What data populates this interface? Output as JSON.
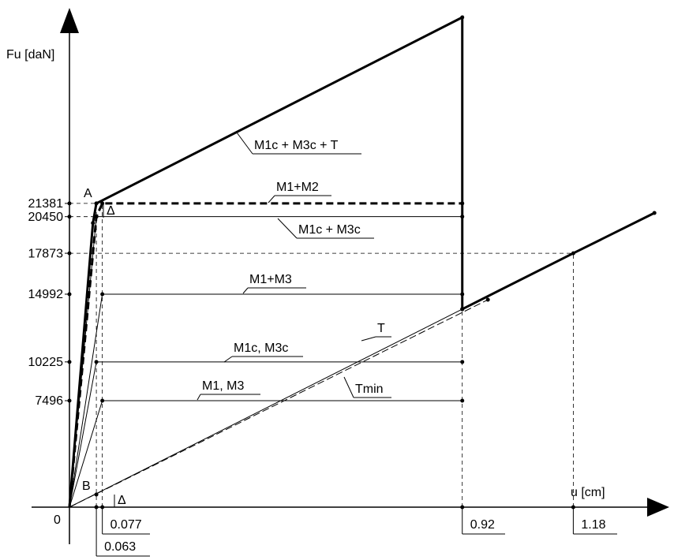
{
  "chart_data": {
    "type": "line",
    "y_label": "Fu [daN]",
    "x_label": "u [cm]",
    "origin_label": "0",
    "annotations": [
      "A",
      "B",
      "Δ",
      "Δ"
    ],
    "xlim": [
      0,
      1.39
    ],
    "ylim": [
      0,
      34590
    ],
    "xticks": [
      0.063,
      0.077,
      0.92,
      1.18
    ],
    "yticks": [
      7496,
      10225,
      14992,
      17873,
      20450,
      21381
    ],
    "series": [
      {
        "name": "M1c + M3c + T",
        "color": "#000000",
        "width": 3,
        "dashed": false,
        "x": [
          0,
          0.055,
          0.063,
          0.92,
          0.92,
          1.18,
          1.37
        ],
        "values": [
          0,
          20000,
          21381,
          34480,
          13940,
          17873,
          20710
        ]
      },
      {
        "name": "M1+M2",
        "color": "#000000",
        "width": 3,
        "dashed": true,
        "x": [
          0,
          0.063,
          0.077,
          0.92
        ],
        "values": [
          0,
          20450,
          21381,
          21381
        ]
      },
      {
        "name": "M1c + M3c",
        "color": "#000000",
        "width": 1,
        "dashed": false,
        "x": [
          0,
          0.063,
          0.92
        ],
        "values": [
          0,
          20450,
          20450
        ]
      },
      {
        "name": "M1+M3",
        "color": "#000000",
        "width": 1,
        "dashed": false,
        "x": [
          0,
          0.077,
          0.92
        ],
        "values": [
          0,
          14992,
          14992
        ]
      },
      {
        "name": "M1c, M3c",
        "color": "#000000",
        "width": 1,
        "dashed": false,
        "x": [
          0,
          0.063,
          0.92
        ],
        "values": [
          0,
          10225,
          10225
        ]
      },
      {
        "name": "M1, M3",
        "color": "#000000",
        "width": 1,
        "dashed": false,
        "x": [
          0,
          0.077,
          0.92
        ],
        "values": [
          0,
          7496,
          7496
        ]
      },
      {
        "name": "T",
        "color": "#000000",
        "width": 1,
        "dashed": false,
        "x": [
          0,
          0.92
        ],
        "values": [
          0,
          13940
        ]
      },
      {
        "name": "Tmin",
        "color": "#000000",
        "width": 1,
        "dashed": true,
        "x": [
          0,
          0.98
        ],
        "values": [
          0,
          14600
        ]
      }
    ],
    "point_B": {
      "x": 0.063,
      "value": 890
    }
  }
}
